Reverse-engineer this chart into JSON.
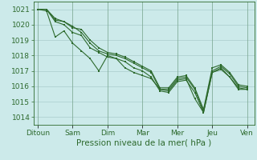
{
  "background_color": "#cceaea",
  "grid_color": "#aacccc",
  "line_color": "#2d6a2d",
  "marker_color": "#2d6a2d",
  "xlabel": "Pression niveau de la mer( hPa )",
  "xlabel_fontsize": 7.5,
  "ylabel_fontsize": 6.5,
  "tick_fontsize": 6.5,
  "ylim": [
    1013.5,
    1021.5
  ],
  "yticks": [
    1014,
    1015,
    1016,
    1017,
    1018,
    1019,
    1020,
    1021
  ],
  "x_day_labels": [
    "Ditoun",
    "Sam",
    "Dim",
    "Mar",
    "Mer",
    "Jeu",
    "Ven"
  ],
  "x_day_positions": [
    0,
    24,
    48,
    72,
    96,
    120,
    144
  ],
  "xlim": [
    -3,
    149
  ],
  "series": [
    [
      1021.0,
      1021.0,
      1020.3,
      1020.2,
      1019.9,
      1019.5,
      1018.8,
      1018.3,
      1018.1,
      1018.0,
      1017.8,
      1017.5,
      1017.2,
      1016.9,
      1015.8,
      1015.8,
      1016.5,
      1016.6,
      1015.8,
      1014.4,
      1017.0,
      1017.3,
      1016.8,
      1016.0,
      1015.9
    ],
    [
      1021.0,
      1021.0,
      1020.2,
      1020.0,
      1019.5,
      1019.3,
      1018.5,
      1018.2,
      1017.9,
      1017.8,
      1017.6,
      1017.2,
      1017.0,
      1016.6,
      1015.7,
      1015.6,
      1016.3,
      1016.4,
      1015.6,
      1014.3,
      1016.9,
      1017.1,
      1016.6,
      1015.8,
      1015.8
    ],
    [
      1021.0,
      1021.0,
      1020.4,
      1020.2,
      1019.8,
      1019.7,
      1019.0,
      1018.5,
      1018.2,
      1018.1,
      1017.9,
      1017.6,
      1017.3,
      1017.0,
      1015.9,
      1015.9,
      1016.6,
      1016.7,
      1015.9,
      1014.5,
      1017.2,
      1017.4,
      1016.9,
      1016.1,
      1016.0
    ],
    [
      1021.0,
      1020.9,
      1019.2,
      1019.6,
      1018.8,
      1018.3,
      1017.8,
      1017.0,
      1018.0,
      1017.8,
      1017.2,
      1016.9,
      1016.7,
      1016.5,
      1015.8,
      1015.7,
      1016.4,
      1016.5,
      1015.2,
      1014.3,
      1016.9,
      1017.2,
      1016.6,
      1015.9,
      1015.8
    ]
  ],
  "x_count": 25,
  "x_step": 6,
  "marker_size": 2.0,
  "linewidth": 0.8
}
